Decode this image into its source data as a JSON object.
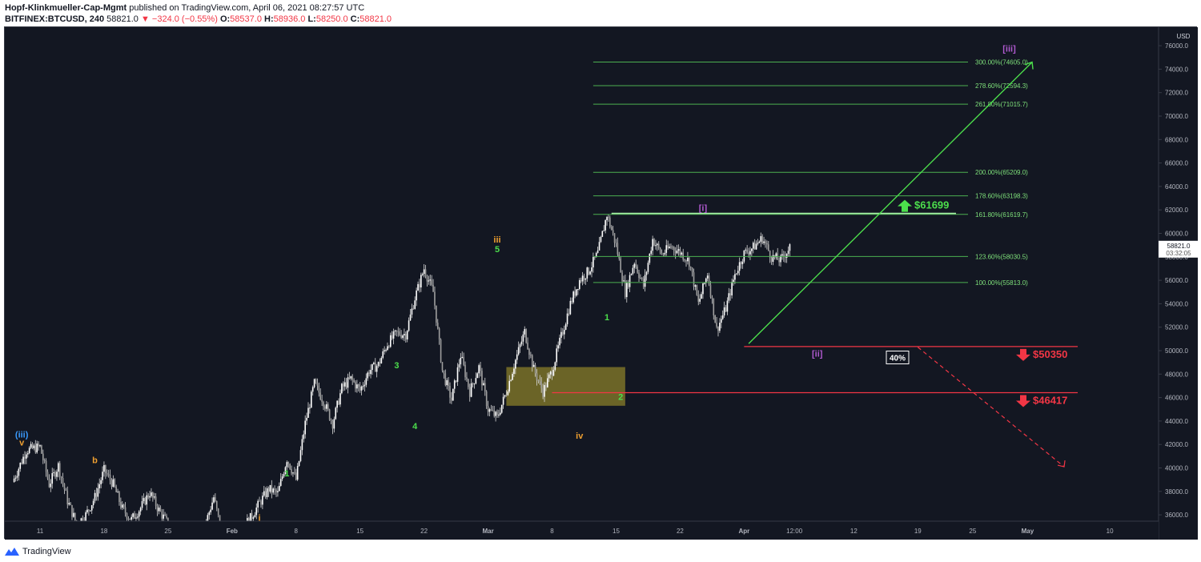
{
  "header": {
    "author": "Hopf-Klinkmueller-Cap-Mgmt",
    "published_text": "published on TradingView.com, April 06, 2021 08:27:57 UTC",
    "symbol": "BITFINEX:BTCUSD, 240",
    "last_price": "58821.0",
    "change": "−324.0 (−0.55%)",
    "o_label": "O:",
    "o_value": "58537.0",
    "h_label": "H:",
    "h_value": "58936.0",
    "l_label": "L:",
    "l_value": "58250.0",
    "c_label": "C:",
    "c_value": "58821.0"
  },
  "footer": {
    "brand": "TradingView"
  },
  "colors": {
    "background": "#131722",
    "fib_line": "#4caf50",
    "fib_text": "#7ee07a",
    "wave_green": "#4cdf4c",
    "wave_orange": "#f0a030",
    "wave_purple": "#b05ad0",
    "wave_blue": "#3a9bff",
    "support_red": "#f23645",
    "zone": "#8a7f2a"
  },
  "chart_data": {
    "type": "candlestick",
    "currency_label": "USD",
    "price_axis": {
      "ticks": [
        36000,
        38000,
        40000,
        42000,
        44000,
        46000,
        48000,
        50000,
        52000,
        54000,
        56000,
        58000,
        60000,
        62000,
        64000,
        66000,
        68000,
        70000,
        72000,
        74000,
        76000
      ],
      "tick_labels": [
        "36000.0",
        "38000.0",
        "40000.0",
        "42000.0",
        "44000.0",
        "46000.0",
        "48000.0",
        "50000.0",
        "52000.0",
        "54000.0",
        "56000.0",
        "58000.0",
        "60000.0",
        "62000.0",
        "64000.0",
        "66000.0",
        "68000.0",
        "70000.0",
        "72000.0",
        "74000.0",
        "76000.0"
      ],
      "range": [
        35500,
        77000
      ]
    },
    "time_axis": {
      "labels": [
        "11",
        "18",
        "25",
        "Feb",
        "8",
        "15",
        "22",
        "Mar",
        "8",
        "15",
        "22",
        "Apr",
        "12:00",
        "12",
        "19",
        "25",
        "May",
        "10"
      ],
      "bold": [
        false,
        false,
        false,
        true,
        false,
        false,
        false,
        true,
        false,
        false,
        false,
        true,
        false,
        false,
        false,
        false,
        true,
        false
      ],
      "day_index": [
        0,
        7,
        14,
        21,
        28,
        35,
        42,
        49,
        56,
        63,
        70,
        77,
        82.5,
        89,
        96,
        102,
        108,
        117
      ]
    },
    "last_price_box": {
      "price": "58821.0",
      "countdown": "03:32:05",
      "value": 58821
    },
    "price_path": [
      [
        -3,
        38800
      ],
      [
        -1.5,
        41500
      ],
      [
        0,
        41800
      ],
      [
        1,
        38600
      ],
      [
        2,
        40200
      ],
      [
        3,
        37200
      ],
      [
        4,
        35200
      ],
      [
        5,
        36000
      ],
      [
        6,
        37500
      ],
      [
        7,
        39800
      ],
      [
        8,
        38600
      ],
      [
        9,
        36500
      ],
      [
        10,
        35600
      ],
      [
        11,
        36600
      ],
      [
        12,
        37900
      ],
      [
        13,
        36400
      ],
      [
        14,
        35200
      ],
      [
        15,
        34000
      ],
      [
        16,
        33200
      ],
      [
        17,
        32200
      ],
      [
        18,
        35000
      ],
      [
        19,
        37500
      ],
      [
        20,
        34000
      ],
      [
        21,
        33000
      ],
      [
        22,
        34800
      ],
      [
        23,
        35700
      ],
      [
        24,
        37000
      ],
      [
        25,
        38200
      ],
      [
        26,
        37800
      ],
      [
        27,
        40800
      ],
      [
        28,
        39000
      ],
      [
        29,
        43800
      ],
      [
        30,
        47200
      ],
      [
        31,
        45700
      ],
      [
        32,
        43800
      ],
      [
        33,
        46800
      ],
      [
        34,
        47600
      ],
      [
        35,
        46600
      ],
      [
        36,
        48300
      ],
      [
        37,
        48800
      ],
      [
        38,
        50600
      ],
      [
        39,
        51500
      ],
      [
        40,
        51400
      ],
      [
        41,
        54500
      ],
      [
        42,
        57000
      ],
      [
        43,
        55000
      ],
      [
        44,
        48300
      ],
      [
        45,
        45800
      ],
      [
        46,
        49600
      ],
      [
        47,
        46500
      ],
      [
        48,
        48600
      ],
      [
        49,
        45000
      ],
      [
        50,
        44300
      ],
      [
        51,
        46500
      ],
      [
        52,
        49200
      ],
      [
        53,
        51600
      ],
      [
        54,
        48400
      ],
      [
        55,
        46500
      ],
      [
        56,
        48300
      ],
      [
        57,
        51200
      ],
      [
        58,
        54000
      ],
      [
        59,
        56000
      ],
      [
        60,
        56800
      ],
      [
        61,
        58300
      ],
      [
        62,
        61600
      ],
      [
        63,
        59000
      ],
      [
        64,
        55000
      ],
      [
        65,
        57600
      ],
      [
        66,
        55500
      ],
      [
        67,
        59500
      ],
      [
        68,
        58200
      ],
      [
        69,
        58900
      ],
      [
        70,
        58400
      ],
      [
        71,
        57600
      ],
      [
        72,
        54000
      ],
      [
        73,
        56600
      ],
      [
        74,
        51800
      ],
      [
        75,
        53600
      ],
      [
        76,
        56500
      ],
      [
        77,
        58300
      ],
      [
        78,
        58800
      ],
      [
        79,
        59600
      ],
      [
        80,
        58000
      ],
      [
        81,
        57700
      ],
      [
        82,
        58820
      ]
    ],
    "fib_levels": [
      {
        "label": "300.00%(74605.0)",
        "price": 74605
      },
      {
        "label": "278.60%(72594.3)",
        "price": 72594.3
      },
      {
        "label": "261.80%(71015.7)",
        "price": 71015.7
      },
      {
        "label": "200.00%(65209.0)",
        "price": 65209
      },
      {
        "label": "178.60%(63198.3)",
        "price": 63198.3
      },
      {
        "label": "161.80%(61619.7)",
        "price": 61619.7
      },
      {
        "label": "123.60%(58030.5)",
        "price": 58030.5
      },
      {
        "label": "100.00%(55813.0)",
        "price": 55813
      }
    ],
    "wave_labels": [
      {
        "text": "(iii)",
        "color": "wave_blue",
        "day": -2,
        "price": 42600
      },
      {
        "text": "v",
        "color": "wave_orange",
        "day": -2,
        "price": 41900
      },
      {
        "text": "b",
        "color": "wave_orange",
        "day": 6,
        "price": 40400
      },
      {
        "text": "i",
        "color": "wave_orange",
        "day": 24,
        "price": 35500
      },
      {
        "text": "1",
        "color": "wave_green",
        "day": 27,
        "price": 39300
      },
      {
        "text": "3",
        "color": "wave_green",
        "day": 39,
        "price": 48500
      },
      {
        "text": "4",
        "color": "wave_green",
        "day": 41,
        "price": 43300
      },
      {
        "text": "iii",
        "color": "wave_orange",
        "day": 50,
        "price": 59200
      },
      {
        "text": "5",
        "color": "wave_green",
        "day": 50,
        "price": 58400
      },
      {
        "text": "iv",
        "color": "wave_orange",
        "day": 59,
        "price": 42500
      },
      {
        "text": "1",
        "color": "wave_green",
        "day": 62,
        "price": 52600
      },
      {
        "text": "2",
        "color": "wave_green",
        "day": 63.5,
        "price": 45800
      },
      {
        "text": "[i]",
        "color": "wave_purple",
        "day": 72.5,
        "price": 61900
      },
      {
        "text": "[ii]",
        "color": "wave_purple",
        "day": 85,
        "price": 49500
      },
      {
        "text": "[iii]",
        "color": "wave_purple",
        "day": 106,
        "price": 75500
      }
    ],
    "targets": [
      {
        "text": "$61699",
        "direction": "up",
        "price": 61699
      },
      {
        "text": "$50350",
        "direction": "down",
        "price": 50350
      },
      {
        "text": "$46417",
        "direction": "down",
        "price": 46417
      }
    ],
    "percent_box": "40%"
  }
}
